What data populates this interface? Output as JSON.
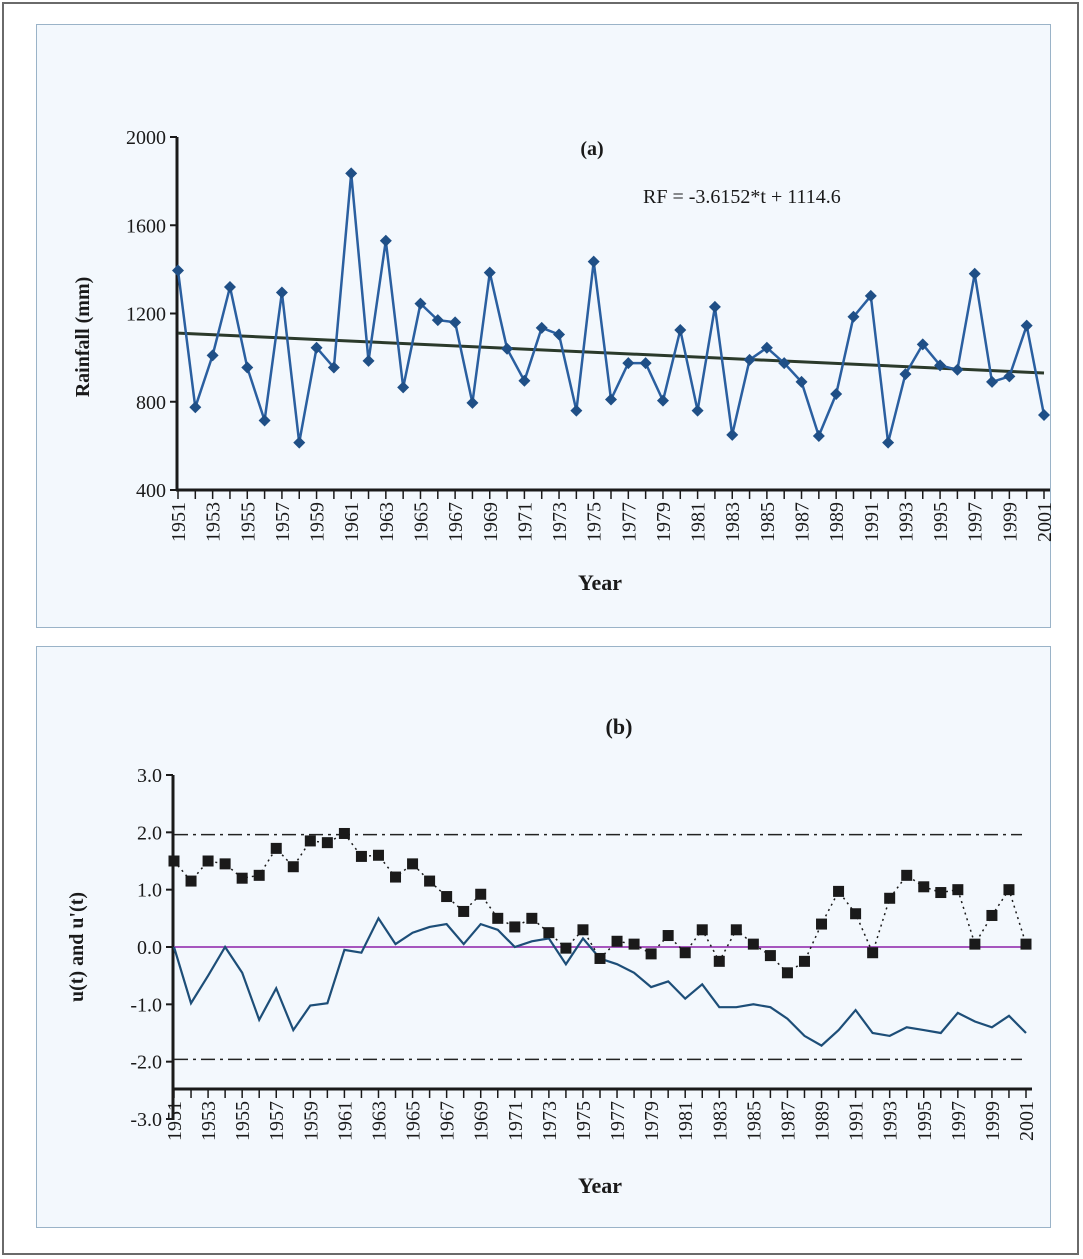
{
  "chart_data": [
    {
      "type": "line",
      "panel_label": "(a)",
      "title": "",
      "xlabel": "Year",
      "ylabel": "Rainfall (mm)",
      "ylim": [
        400,
        2000
      ],
      "yticks": [
        "2000",
        "1600",
        "1200",
        "800",
        "400"
      ],
      "xticks": [
        "1951",
        "1953",
        "1955",
        "1957",
        "1959",
        "1961",
        "1963",
        "1965",
        "1967",
        "1969",
        "1971",
        "1973",
        "1975",
        "1977",
        "1979",
        "1981",
        "1983",
        "1985",
        "1987",
        "1989",
        "1991",
        "1993",
        "1995",
        "1997",
        "1999",
        "2001"
      ],
      "x": [
        1951,
        1952,
        1953,
        1954,
        1955,
        1956,
        1957,
        1958,
        1959,
        1960,
        1961,
        1962,
        1963,
        1964,
        1965,
        1966,
        1967,
        1968,
        1969,
        1970,
        1971,
        1972,
        1973,
        1974,
        1975,
        1976,
        1977,
        1978,
        1979,
        1980,
        1981,
        1982,
        1983,
        1984,
        1985,
        1986,
        1987,
        1988,
        1989,
        1990,
        1991,
        1992,
        1993,
        1994,
        1995,
        1996,
        1997,
        1998,
        1999,
        2000,
        2001
      ],
      "series": [
        {
          "color": "#2a5fa0",
          "marker": "diamond",
          "values": [
            1395,
            775,
            1010,
            1320,
            955,
            715,
            1295,
            615,
            1045,
            955,
            1835,
            985,
            1530,
            865,
            1245,
            1170,
            1160,
            795,
            1385,
            1040,
            895,
            1135,
            1105,
            760,
            1435,
            810,
            975,
            975,
            805,
            1125,
            760,
            1230,
            650,
            990,
            1045,
            975,
            890,
            645,
            835,
            1185,
            1280,
            615,
            925,
            1060,
            965,
            945,
            1380,
            890,
            915,
            1145,
            740
          ]
        }
      ],
      "trendline": {
        "slope": -3.6152,
        "intercept": 1114.6,
        "color": "#2b3a2b"
      },
      "annotation": "RF = -3.6152*t + 1114.6"
    },
    {
      "type": "line",
      "panel_label": "(b)",
      "title": "",
      "xlabel": "Year",
      "ylabel": "u(t) and u'(t)",
      "ylim": [
        -3.0,
        3.0
      ],
      "yticks": [
        "3.0",
        "2.0",
        "1.0",
        "0.0",
        "-1.0",
        "-2.0",
        "-3.0"
      ],
      "xticks": [
        "1951",
        "1953",
        "1955",
        "1957",
        "1959",
        "1961",
        "1963",
        "1965",
        "1967",
        "1969",
        "1971",
        "1973",
        "1975",
        "1977",
        "1979",
        "1981",
        "1983",
        "1985",
        "1987",
        "1989",
        "1991",
        "1993",
        "1995",
        "1997",
        "1999",
        "2001"
      ],
      "x": [
        1951,
        1952,
        1953,
        1954,
        1955,
        1956,
        1957,
        1958,
        1959,
        1960,
        1961,
        1962,
        1963,
        1964,
        1965,
        1966,
        1967,
        1968,
        1969,
        1970,
        1971,
        1972,
        1973,
        1974,
        1975,
        1976,
        1977,
        1978,
        1979,
        1980,
        1981,
        1982,
        1983,
        1984,
        1985,
        1986,
        1987,
        1988,
        1989,
        1990,
        1991,
        1992,
        1993,
        1994,
        1995,
        1996,
        1997,
        1998,
        1999,
        2000,
        2001
      ],
      "series": [
        {
          "color": "#1d4e78",
          "style": "solid",
          "values": [
            0.0,
            -0.98,
            -0.5,
            0.0,
            -0.45,
            -1.27,
            -0.72,
            -1.45,
            -1.02,
            -0.98,
            -0.05,
            -0.1,
            0.5,
            0.05,
            0.25,
            0.35,
            0.4,
            0.05,
            0.4,
            0.3,
            0.0,
            0.1,
            0.15,
            -0.3,
            0.15,
            -0.2,
            -0.3,
            -0.45,
            -0.7,
            -0.6,
            -0.9,
            -0.65,
            -1.05,
            -1.05,
            -1.0,
            -1.05,
            -1.25,
            -1.55,
            -1.72,
            -1.45,
            -1.1,
            -1.5,
            -1.55,
            -1.4,
            -1.45,
            -1.5,
            -1.15,
            -1.3,
            -1.4,
            -1.2,
            -1.5
          ]
        },
        {
          "color": "#1a1a1a",
          "style": "dotted",
          "marker": "square",
          "values": [
            1.5,
            1.15,
            1.5,
            1.45,
            1.2,
            1.25,
            1.72,
            1.4,
            1.85,
            1.82,
            1.98,
            1.58,
            1.6,
            1.22,
            1.45,
            1.15,
            0.88,
            0.62,
            0.92,
            0.5,
            0.35,
            0.5,
            0.25,
            -0.02,
            0.3,
            -0.2,
            0.1,
            0.05,
            -0.12,
            0.2,
            -0.1,
            0.3,
            -0.25,
            0.3,
            0.05,
            -0.15,
            -0.45,
            -0.25,
            0.4,
            0.97,
            0.58,
            -0.1,
            0.85,
            1.25,
            1.05,
            0.95,
            1.0,
            0.05,
            0.55,
            1.0,
            0.05
          ]
        }
      ],
      "zero_line_color": "#9b3fb5",
      "confidence_levels": [
        1.96,
        -1.96
      ]
    }
  ]
}
